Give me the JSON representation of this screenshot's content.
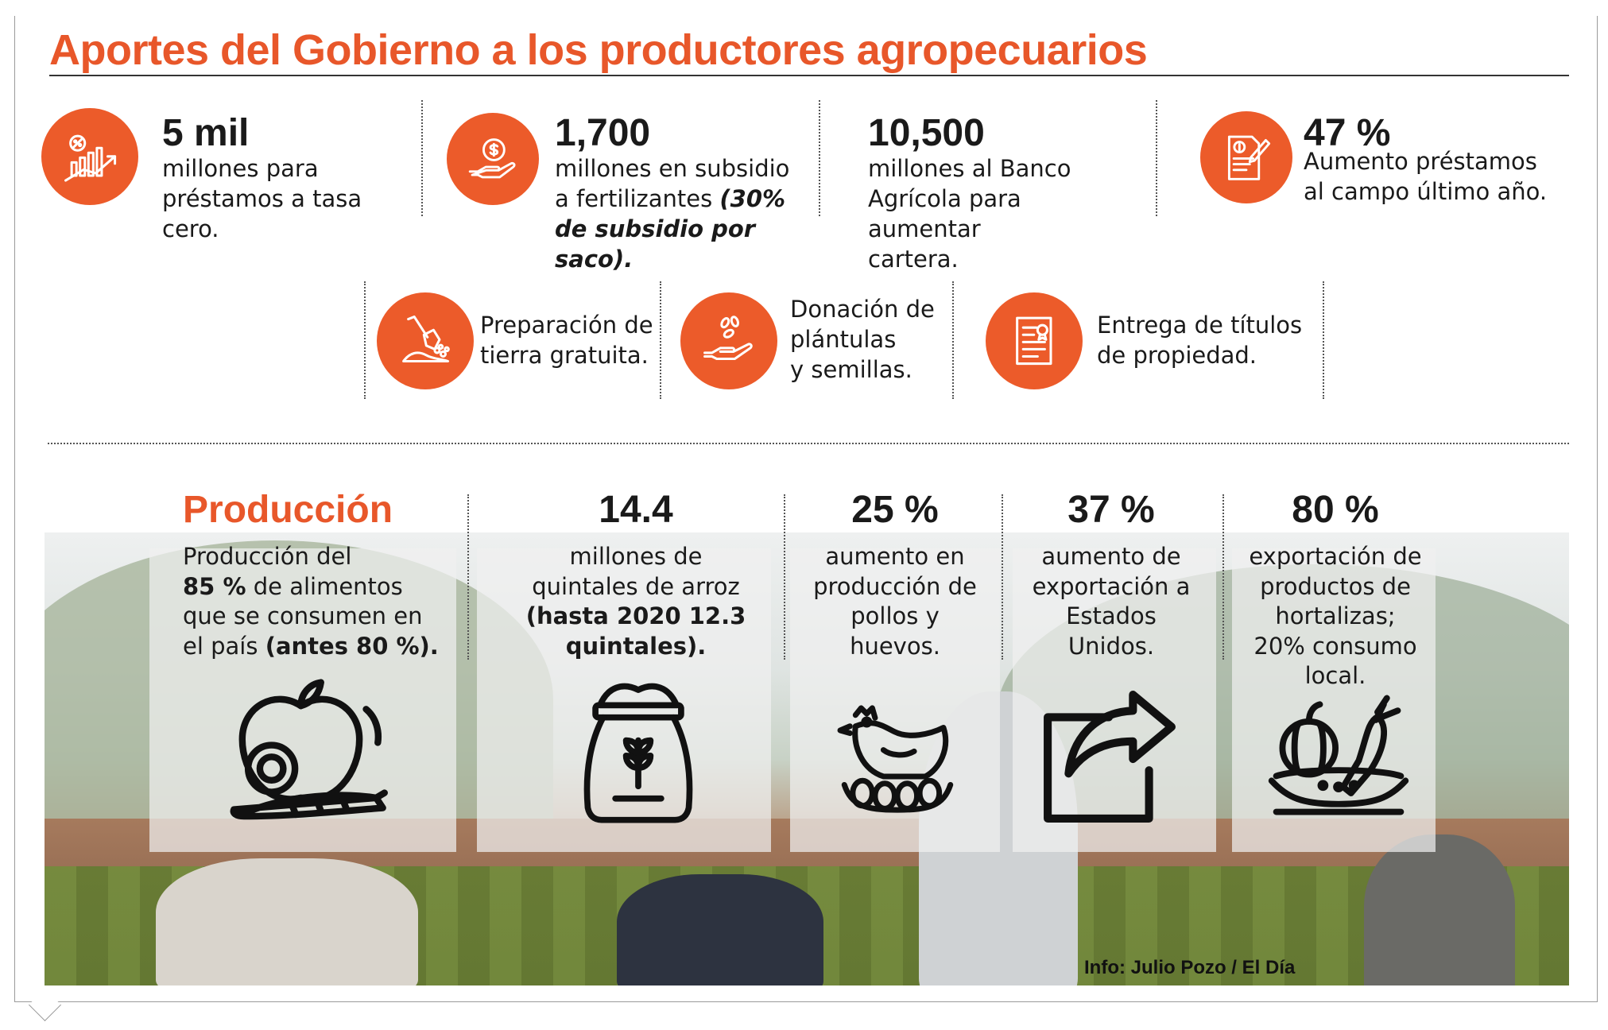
{
  "title": "Aportes del Gobierno a los productores agropecuarios",
  "colors": {
    "accent": "#ec5b2a",
    "text": "#1a1a1a"
  },
  "top_stats": [
    {
      "icon": "chart-percent-icon",
      "number": "5 mil",
      "text_lines": [
        "millones para",
        "préstamos a tasa cero."
      ]
    },
    {
      "icon": "hand-coin-icon",
      "number": "1,700",
      "text_lines": [
        "millones en subsidio",
        "a fertilizantes "
      ],
      "text_emph": [
        "(30%",
        "de subsidio por saco)."
      ]
    },
    {
      "icon": "",
      "number": "10,500",
      "text_lines": [
        "millones al Banco",
        "Agrícola para aumentar",
        "cartera."
      ]
    },
    {
      "icon": "document-pen-icon",
      "number": "47 %",
      "text_lines": [
        "Aumento préstamos",
        "al campo último año."
      ]
    }
  ],
  "mid_items": [
    {
      "icon": "shovel-soil-icon",
      "text_lines": [
        "Preparación de",
        "tierra gratuita."
      ]
    },
    {
      "icon": "hand-seeds-icon",
      "text_lines": [
        "Donación de",
        "plántulas",
        "y semillas."
      ]
    },
    {
      "icon": "certificate-icon",
      "text_lines": [
        "Entrega de títulos",
        "de propiedad."
      ]
    }
  ],
  "production": {
    "heading": "Producción",
    "text_lines": [
      "Producción del",
      "de alimentos",
      "que se consumen en",
      "el país "
    ],
    "bold_pct": "85 %",
    "bold_tail": "(antes 80 %)."
  },
  "prod_stats": [
    {
      "number": "14.4",
      "text_lines": [
        "millones de",
        "quintales de arroz"
      ],
      "bold_lines": [
        "(hasta 2020 12.3",
        "quintales)."
      ],
      "icon": "rice-sack-icon"
    },
    {
      "number": "25 %",
      "text_lines": [
        "aumento en",
        "producción de",
        "pollos y",
        "huevos."
      ],
      "icon": "hen-eggs-icon"
    },
    {
      "number": "37 %",
      "text_lines": [
        "aumento de",
        "exportación a",
        "Estados",
        "Unidos."
      ],
      "icon": "export-arrow-icon"
    },
    {
      "number": "80 %",
      "text_lines": [
        "exportación de",
        "productos de",
        "hortalizas;",
        "20% consumo",
        "local."
      ],
      "icon": "vegetables-bowl-icon"
    }
  ],
  "production_icon": "fruits-vegetables-icon",
  "credit": "Info: Julio Pozo / El Día"
}
